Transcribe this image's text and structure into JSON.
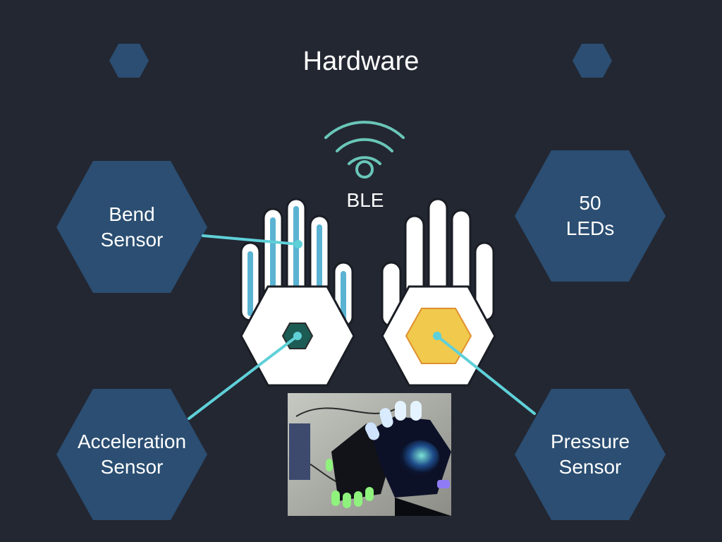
{
  "slide": {
    "title": "Hardware",
    "ble_label": "BLE",
    "sensors": {
      "bend": {
        "line1": "Bend",
        "line2": "Sensor"
      },
      "acceleration": {
        "line1": "Acceleration",
        "line2": "Sensor"
      },
      "leds": {
        "line1": "50",
        "line2": "LEDs"
      },
      "pressure": {
        "line1": "Pressure",
        "line2": "Sensor"
      }
    }
  },
  "colors": {
    "background": "#232732",
    "hexagon": "#2b4e72",
    "accent_line": "#5fd0d8",
    "finger_stripe": "#5ab3d3",
    "accel_chip": "#1d5b55",
    "pressure_pad": "#f0c94d",
    "wifi": "#69c6b8"
  },
  "icons": [
    "wifi-icon",
    "left-glove-icon",
    "right-glove-icon"
  ]
}
